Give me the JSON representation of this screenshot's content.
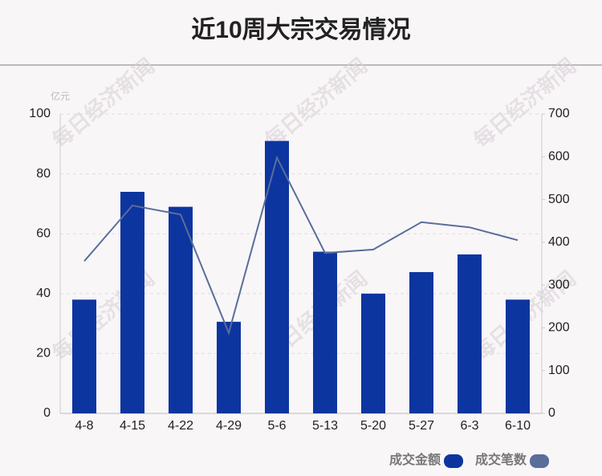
{
  "chart_data": {
    "type": "bar",
    "title": "近10周大宗交易情况",
    "y_unit": "亿元",
    "watermark": "每日经济新闻",
    "categories": [
      "4-8",
      "4-15",
      "4-22",
      "4-29",
      "5-6",
      "5-13",
      "5-20",
      "5-27",
      "6-3",
      "6-10"
    ],
    "series": [
      {
        "name": "成交金额",
        "color": "#0d35a0",
        "type": "bar",
        "values": [
          38,
          74,
          69,
          30.6,
          91,
          54,
          40,
          47.2,
          53.1,
          38
        ]
      },
      {
        "name": "成交笔数",
        "color": "#5a6e9a",
        "type": "line",
        "axis": "y2",
        "values": [
          356,
          486,
          465,
          188,
          598,
          375,
          383,
          447,
          435,
          405
        ]
      }
    ],
    "ylim": [
      0,
      100
    ],
    "yticks": [
      0,
      20,
      40,
      60,
      80,
      100
    ],
    "y2lim": [
      0,
      700
    ],
    "y2ticks": [
      0,
      100,
      200,
      300,
      400,
      500,
      600,
      700
    ],
    "grid": true
  }
}
